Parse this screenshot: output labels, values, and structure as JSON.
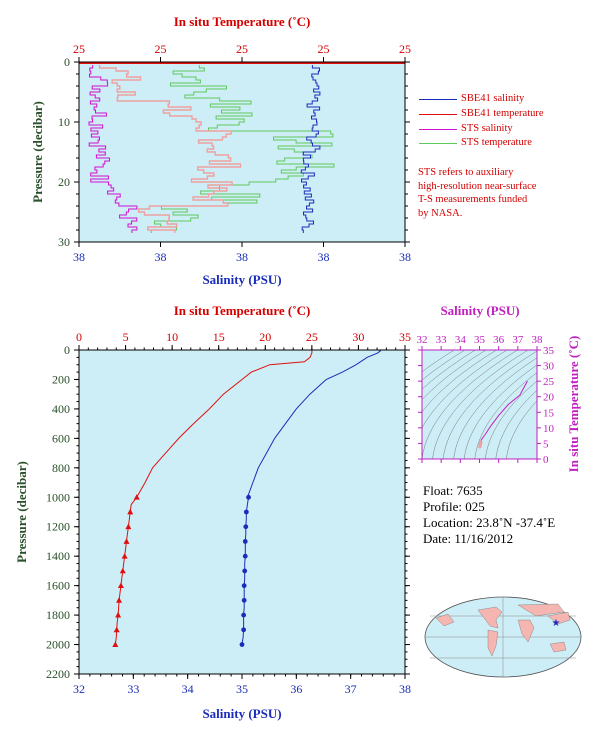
{
  "colors": {
    "salinity": "#1a2dba",
    "temperature": "#e01010",
    "sts_salinity": "#d10fd1",
    "sts_temperature": "#5fc85a",
    "sts_temp_light": "#f0a0a0",
    "plot_bg": "#cdeef6",
    "axis_salinity": "#1a2dba",
    "axis_temperature": "#d40000",
    "axis_pressure": "#2a4f2a",
    "ts_axis": "#c020c0"
  },
  "chart_data": [
    {
      "id": "near-surface",
      "type": "line",
      "top_axis_label": "In situ Temperature (˚C)",
      "top_ticks": [
        "25",
        "25",
        "25",
        "25",
        "25"
      ],
      "bottom_axis_label": "Salinity (PSU)",
      "bottom_ticks": [
        "38",
        "38",
        "38",
        "38",
        "38"
      ],
      "ylabel": "Pressure (decibar)",
      "y_ticks": [
        "0",
        "10",
        "20",
        "30"
      ],
      "ylim": [
        0,
        30
      ],
      "legend": [
        {
          "name": "SBE41 salinity",
          "color": "#1a2dba"
        },
        {
          "name": "SBE41 temperature",
          "color": "#e01010"
        },
        {
          "name": "STS salinity",
          "color": "#d10fd1"
        },
        {
          "name": "STS temperature",
          "color": "#5fc85a"
        }
      ],
      "note": [
        "STS refers to auxiliary",
        "high-resolution near-surface",
        "T-S measurements funded",
        "by NASA."
      ]
    },
    {
      "id": "profile",
      "type": "line",
      "top_axis_label": "In situ Temperature (˚C)",
      "top_ticks": [
        "0",
        "5",
        "10",
        "15",
        "20",
        "25",
        "30",
        "35"
      ],
      "xlim_temperature": [
        0,
        35
      ],
      "bottom_axis_label": "Salinity (PSU)",
      "bottom_ticks": [
        "32",
        "33",
        "34",
        "35",
        "36",
        "37",
        "38"
      ],
      "xlim_salinity": [
        32,
        38
      ],
      "ylabel": "Pressure (decibar)",
      "y_ticks": [
        "0",
        "200",
        "400",
        "600",
        "800",
        "1000",
        "1200",
        "1400",
        "1600",
        "1800",
        "2000",
        "2200"
      ],
      "ylim": [
        0,
        2200
      ],
      "series": [
        {
          "kind": "temperature",
          "pressure": [
            0,
            5,
            20,
            50,
            80,
            100,
            150,
            200,
            300,
            400,
            500,
            600,
            700,
            800,
            900,
            1000
          ],
          "values": [
            25.0,
            25.0,
            25.0,
            24.8,
            24.2,
            20.5,
            18.5,
            17.5,
            15.5,
            14.0,
            12.3,
            10.7,
            9.3,
            7.9,
            7.1,
            6.2
          ]
        },
        {
          "kind": "temperature-bottle",
          "pressure": [
            1000,
            1050,
            1100,
            1150,
            1200,
            1250,
            1300,
            1350,
            1400,
            1450,
            1500,
            1550,
            1600,
            1650,
            1700,
            1750,
            1800,
            1850,
            1900,
            1950,
            2000
          ],
          "values": [
            6.2,
            5.6,
            5.5,
            5.4,
            5.3,
            5.2,
            5.1,
            5.0,
            4.9,
            4.8,
            4.7,
            4.6,
            4.5,
            4.4,
            4.3,
            4.25,
            4.2,
            4.1,
            4.05,
            4.0,
            3.9
          ]
        },
        {
          "kind": "salinity",
          "pressure": [
            0,
            5,
            20,
            50,
            100,
            150,
            200,
            300,
            400,
            500,
            600,
            700,
            800,
            900,
            1000
          ],
          "values": [
            37.55,
            37.55,
            37.5,
            37.3,
            37.1,
            36.85,
            36.55,
            36.25,
            36.0,
            35.8,
            35.6,
            35.45,
            35.3,
            35.2,
            35.1
          ]
        },
        {
          "kind": "salinity-bottle",
          "pressure": [
            1000,
            1050,
            1100,
            1150,
            1200,
            1250,
            1300,
            1350,
            1400,
            1450,
            1500,
            1550,
            1600,
            1650,
            1700,
            1750,
            1800,
            1850,
            1900,
            1950,
            2000
          ],
          "values": [
            35.12,
            35.1,
            35.08,
            35.08,
            35.07,
            35.07,
            35.06,
            35.06,
            35.06,
            35.05,
            35.05,
            35.05,
            35.04,
            35.04,
            35.04,
            35.04,
            35.03,
            35.03,
            35.03,
            35.02,
            35.0
          ]
        }
      ]
    },
    {
      "id": "ts-diagram",
      "type": "scatter",
      "top_axis_label": "Salinity (PSU)",
      "top_ticks": [
        "32",
        "33",
        "34",
        "35",
        "36",
        "37",
        "38"
      ],
      "xlim": [
        32,
        38
      ],
      "right_axis_label": "In situ Temperature (˚C)",
      "right_ticks": [
        "0",
        "5",
        "10",
        "15",
        "20",
        "25",
        "30",
        "35"
      ],
      "ylim": [
        0,
        35
      ],
      "series": [
        {
          "salinity": [
            35.0,
            35.05,
            35.1,
            35.3,
            35.6,
            36.0,
            36.5,
            37.1,
            37.5
          ],
          "temperature": [
            3.9,
            5.0,
            6.2,
            7.9,
            10.7,
            14.0,
            17.5,
            20.5,
            25.0
          ]
        }
      ]
    }
  ],
  "float_info": {
    "float": "Float:  7635",
    "profile": "Profile:  025",
    "location": "Location:  23.8˚N  -37.4˚E",
    "date": "Date:  11/16/2012"
  },
  "map": {
    "marker": "star",
    "lat": 23.8,
    "lon": -37.4
  }
}
